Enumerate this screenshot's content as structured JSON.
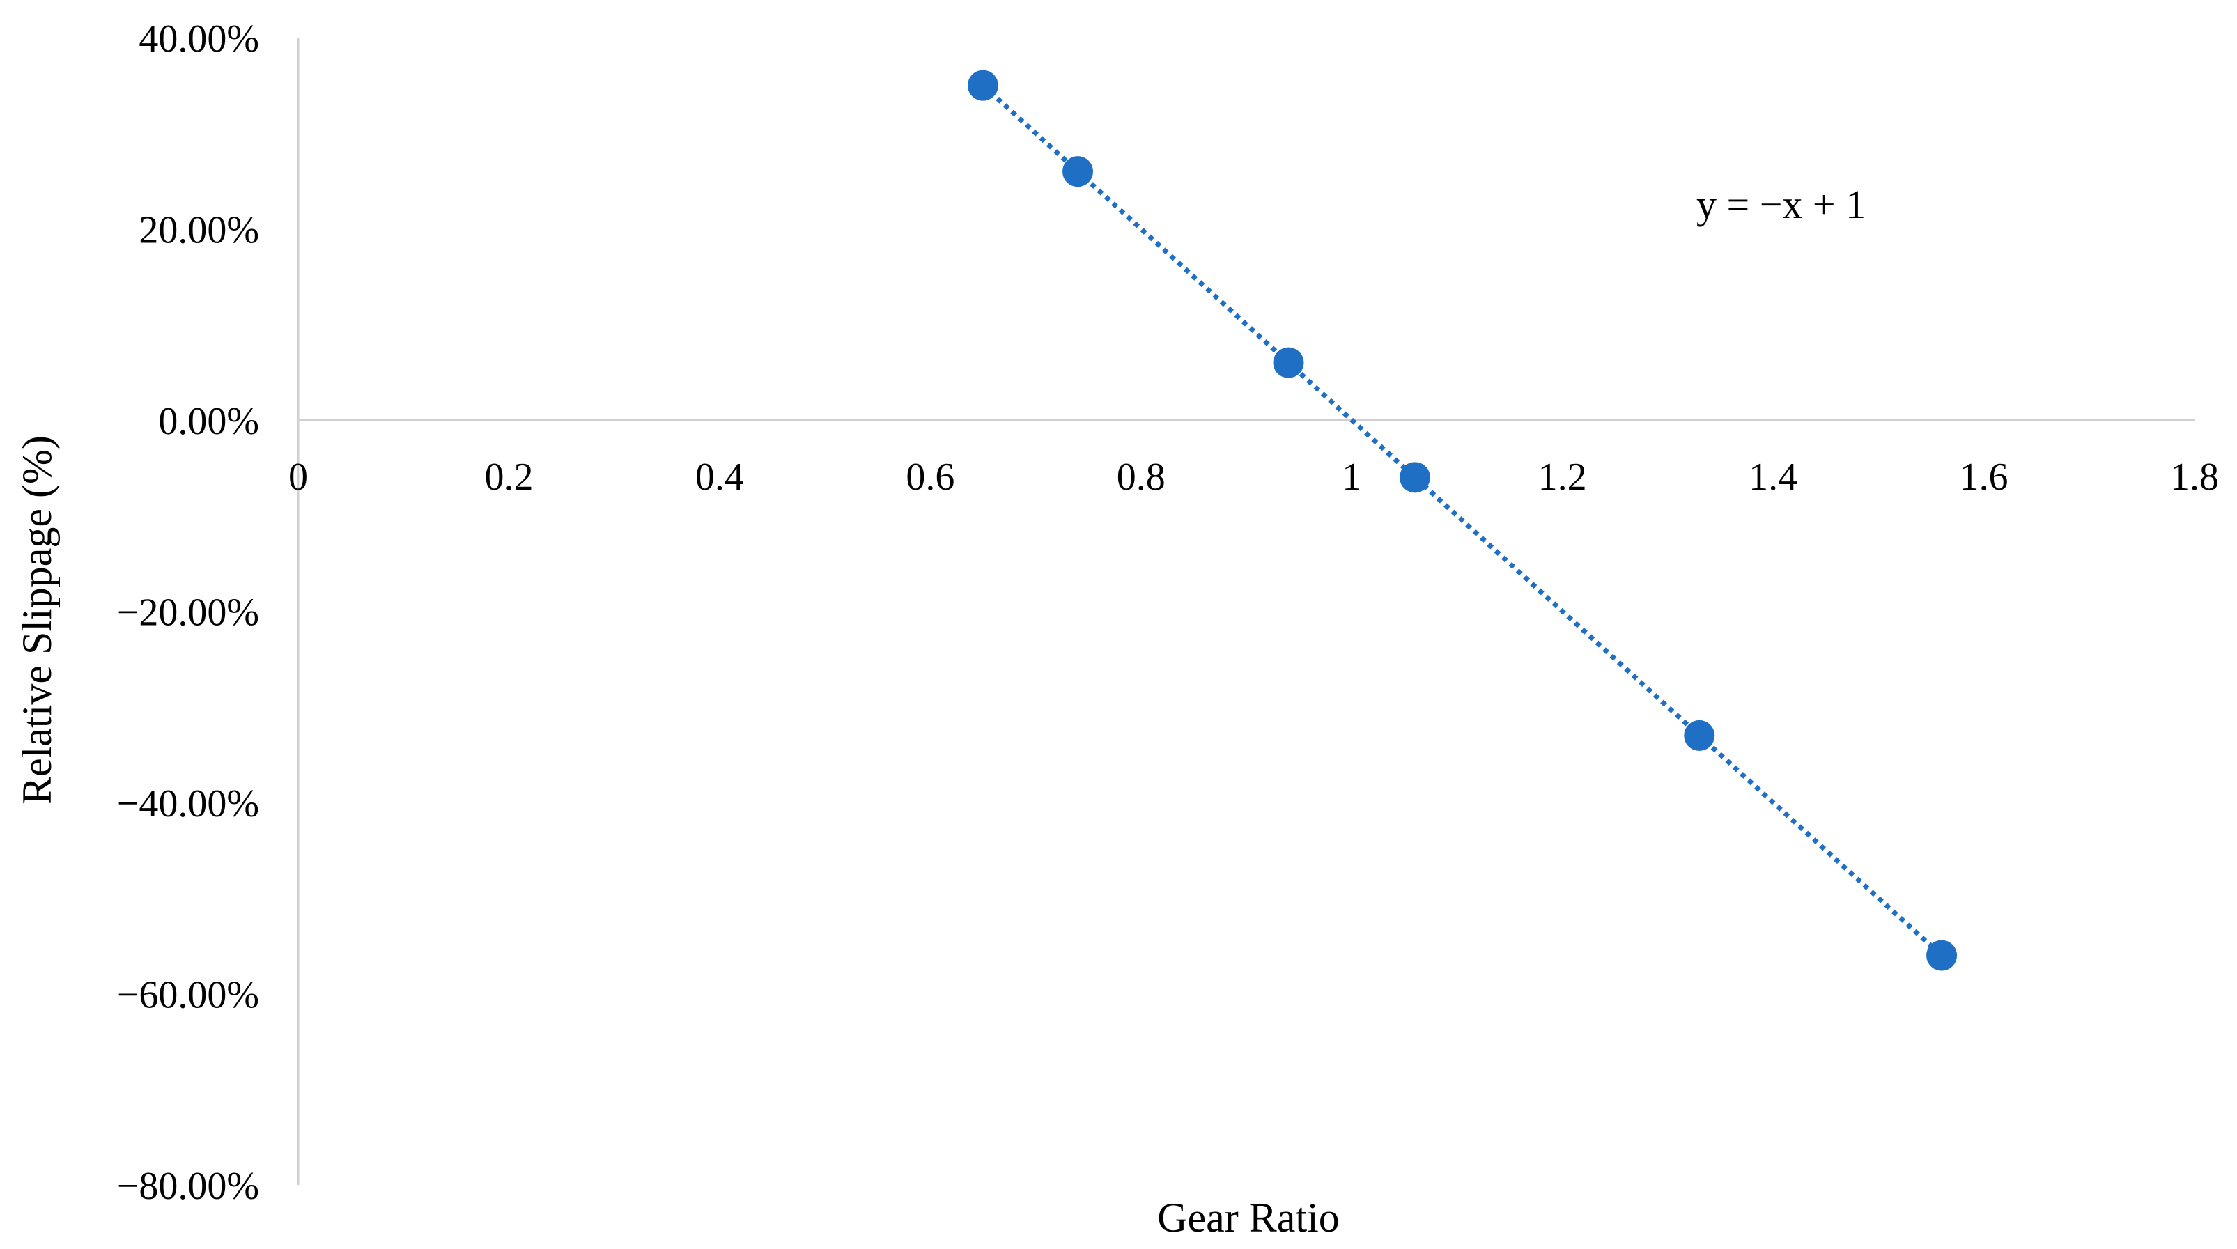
{
  "chart_data": {
    "type": "scatter",
    "title": "",
    "xlabel": "Gear Ratio",
    "ylabel": "Relative Slippage (%)",
    "xlim": [
      0,
      1.8
    ],
    "ylim": [
      -80,
      40
    ],
    "x_ticks": [
      0,
      0.2,
      0.4,
      0.6,
      0.8,
      1,
      1.2,
      1.4,
      1.6,
      1.8
    ],
    "x_tick_labels": [
      "0",
      "0.2",
      "0.4",
      "0.6",
      "0.8",
      "1",
      "1.2",
      "1.4",
      "1.6",
      "1.8"
    ],
    "y_ticks": [
      40,
      20,
      0,
      -20,
      -40,
      -60,
      -80
    ],
    "y_tick_labels": [
      "40.00%",
      "20.00%",
      "0.00%",
      "−20.00%",
      "−40.00%",
      "−60.00%",
      "−80.00%"
    ],
    "series": [
      {
        "x": [
          0.65,
          0.74,
          0.94,
          1.06,
          1.33,
          1.56
        ],
        "y": [
          35,
          26,
          6,
          -6,
          -33,
          -56
        ],
        "color": "#1f6fc5"
      }
    ],
    "trendline": {
      "style": "dotted",
      "color": "#1f6fc5",
      "slope": -1,
      "intercept": 1,
      "x_range": [
        0.65,
        1.56
      ],
      "equation_label": "y = −x + 1"
    },
    "grid": false,
    "legend": "none"
  }
}
